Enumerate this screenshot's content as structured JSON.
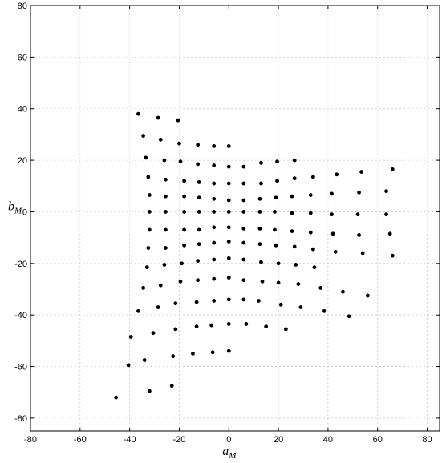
{
  "chart_data": {
    "type": "scatter",
    "title": "",
    "xlabel": "a",
    "xlabel_sub": "M",
    "ylabel": "b",
    "ylabel_sub": "M",
    "xlim": [
      -80,
      85
    ],
    "ylim": [
      -85,
      80
    ],
    "xticks": [
      -80,
      -60,
      -40,
      -20,
      0,
      20,
      40,
      60,
      80
    ],
    "yticks": [
      -80,
      -60,
      -40,
      -20,
      0,
      20,
      40,
      60,
      80
    ],
    "grid": true,
    "marker_color": "#000000",
    "points": [
      [
        -36.5,
        38
      ],
      [
        -28.5,
        36.5
      ],
      [
        -20.5,
        35.5
      ],
      [
        -34.5,
        29.5
      ],
      [
        -27.5,
        28
      ],
      [
        -20,
        26.5
      ],
      [
        -12.5,
        26
      ],
      [
        -6,
        25.5
      ],
      [
        0,
        25.5
      ],
      [
        -33.5,
        21
      ],
      [
        -26,
        20
      ],
      [
        -19.5,
        19.5
      ],
      [
        -12.5,
        18.5
      ],
      [
        -6,
        18
      ],
      [
        0,
        17.5
      ],
      [
        6,
        17.5
      ],
      [
        13,
        19
      ],
      [
        19.5,
        19.5
      ],
      [
        26.5,
        20
      ],
      [
        -32.5,
        13.5
      ],
      [
        -25.5,
        12.5
      ],
      [
        -18,
        12
      ],
      [
        -12,
        11.5
      ],
      [
        -6,
        11
      ],
      [
        0,
        11
      ],
      [
        6,
        11
      ],
      [
        13,
        11
      ],
      [
        19.5,
        12
      ],
      [
        26.5,
        13
      ],
      [
        34,
        13.5
      ],
      [
        43.5,
        14.5
      ],
      [
        53.5,
        15.5
      ],
      [
        66,
        16.5
      ],
      [
        -32,
        6.5
      ],
      [
        -25.5,
        6
      ],
      [
        -18,
        6
      ],
      [
        -12,
        5.5
      ],
      [
        -6,
        5
      ],
      [
        0,
        4.5
      ],
      [
        6,
        4.5
      ],
      [
        12.5,
        5
      ],
      [
        19,
        5.5
      ],
      [
        25.5,
        6
      ],
      [
        33,
        6.5
      ],
      [
        41.5,
        7
      ],
      [
        52.5,
        7.5
      ],
      [
        63.5,
        8
      ],
      [
        -32,
        0
      ],
      [
        -25.5,
        0
      ],
      [
        -18,
        0
      ],
      [
        -12,
        0
      ],
      [
        -6,
        0
      ],
      [
        0,
        0
      ],
      [
        6,
        0
      ],
      [
        12.5,
        0
      ],
      [
        18.5,
        0
      ],
      [
        25.5,
        -0.5
      ],
      [
        33,
        -0.5
      ],
      [
        41.5,
        -1
      ],
      [
        52,
        -1
      ],
      [
        63.5,
        -1
      ],
      [
        -32,
        -7
      ],
      [
        -25.5,
        -7
      ],
      [
        -18,
        -7
      ],
      [
        -12,
        -7
      ],
      [
        -6,
        -6
      ],
      [
        0,
        -6
      ],
      [
        6,
        -6.5
      ],
      [
        12.5,
        -6.5
      ],
      [
        18.5,
        -7
      ],
      [
        25.5,
        -7.5
      ],
      [
        33,
        -8
      ],
      [
        42,
        -8.5
      ],
      [
        52.5,
        -9
      ],
      [
        65,
        -8.5
      ],
      [
        -32.5,
        -14
      ],
      [
        -25.5,
        -14
      ],
      [
        -18,
        -13
      ],
      [
        -12,
        -12.5
      ],
      [
        -6,
        -12
      ],
      [
        0,
        -11.5
      ],
      [
        6,
        -12
      ],
      [
        12.5,
        -12.5
      ],
      [
        19,
        -13
      ],
      [
        26.5,
        -13.5
      ],
      [
        34,
        -14.5
      ],
      [
        43,
        -15.5
      ],
      [
        54,
        -16
      ],
      [
        66,
        -17
      ],
      [
        -33,
        -21.5
      ],
      [
        -26,
        -20.5
      ],
      [
        -19,
        -20
      ],
      [
        -12.5,
        -19
      ],
      [
        -6,
        -18.5
      ],
      [
        0,
        -18
      ],
      [
        6,
        -18.5
      ],
      [
        13,
        -19.5
      ],
      [
        20,
        -20
      ],
      [
        27,
        -20.5
      ],
      [
        34.5,
        -21.5
      ],
      [
        -34.5,
        -29.5
      ],
      [
        -27.5,
        -28.5
      ],
      [
        -19.5,
        -27
      ],
      [
        -12.5,
        -26.5
      ],
      [
        -6,
        -26
      ],
      [
        0,
        -25.5
      ],
      [
        6,
        -26.5
      ],
      [
        13.5,
        -27
      ],
      [
        20,
        -27.5
      ],
      [
        28,
        -28
      ],
      [
        37,
        -29.5
      ],
      [
        46,
        -31
      ],
      [
        56,
        -32.5
      ],
      [
        -36.5,
        -38.5
      ],
      [
        -28.5,
        -37
      ],
      [
        -21.5,
        -35.5
      ],
      [
        -13,
        -35
      ],
      [
        -6,
        -34.5
      ],
      [
        0,
        -34
      ],
      [
        6,
        -34
      ],
      [
        12,
        -34.5
      ],
      [
        21,
        -36
      ],
      [
        29,
        -37
      ],
      [
        38.5,
        -38.5
      ],
      [
        48.5,
        -40.5
      ],
      [
        -39.5,
        -48.5
      ],
      [
        -30.5,
        -47
      ],
      [
        -21.5,
        -45.5
      ],
      [
        -13,
        -44.5
      ],
      [
        -7,
        -44
      ],
      [
        0,
        -43.5
      ],
      [
        7,
        -43.5
      ],
      [
        15,
        -44.5
      ],
      [
        23,
        -45.5
      ],
      [
        -40.5,
        -59.5
      ],
      [
        -34,
        -57.5
      ],
      [
        -22.5,
        -56
      ],
      [
        -14.5,
        -55
      ],
      [
        -6.5,
        -54.5
      ],
      [
        0,
        -54
      ],
      [
        -45.5,
        -72
      ],
      [
        -32,
        -69.5
      ],
      [
        -23,
        -67.5
      ]
    ]
  }
}
